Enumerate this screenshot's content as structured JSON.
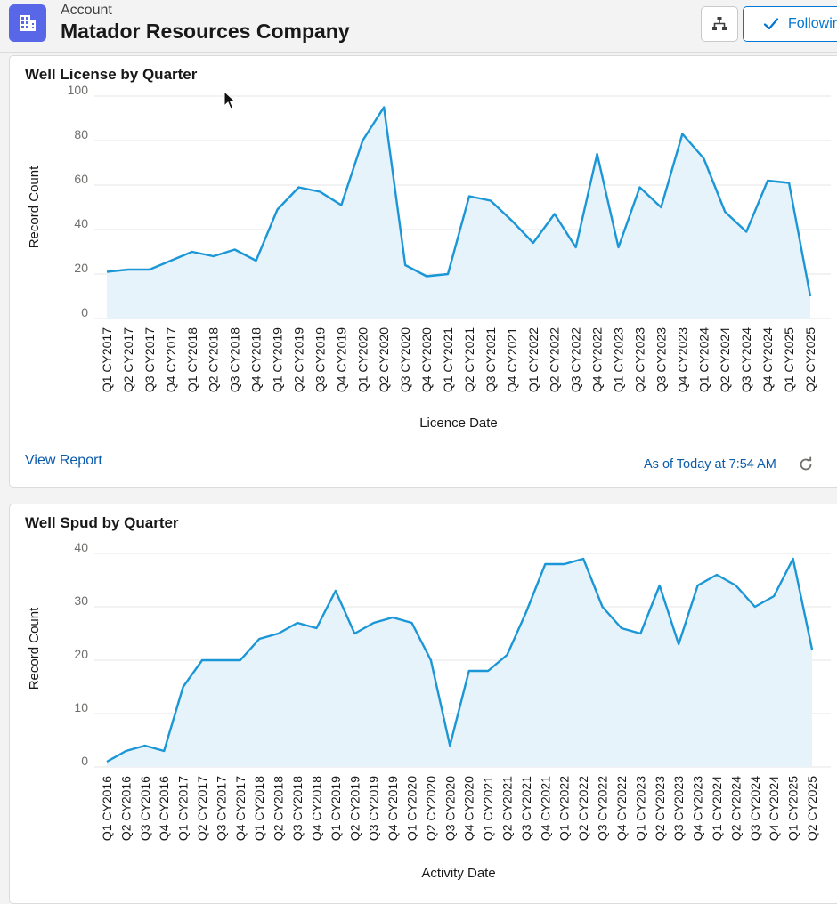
{
  "header": {
    "object_type": "Account",
    "record_name": "Matador Resources Company",
    "follow_label": "Followin",
    "icons": {
      "app": "building-icon",
      "hierarchy": "hierarchy-icon",
      "follow": "check-icon"
    }
  },
  "colors": {
    "accent": "#1b96d6",
    "fill": "#e6f3fb",
    "link": "#0b5cab",
    "app_icon": "#5867e8"
  },
  "cards": [
    {
      "title": "Well License by Quarter",
      "view_report": "View Report",
      "as_of": "As of Today at 7:54 AM",
      "refresh_icon": "refresh-icon"
    },
    {
      "title": "Well Spud by Quarter"
    }
  ],
  "chart_data": [
    {
      "type": "area",
      "title": "Well License by Quarter",
      "xlabel": "Licence Date",
      "ylabel": "Record Count",
      "ylim": [
        0,
        100
      ],
      "yticks": [
        0,
        20,
        40,
        60,
        80,
        100
      ],
      "grid": true,
      "categories": [
        "Q1 CY2017",
        "Q2 CY2017",
        "Q3 CY2017",
        "Q4 CY2017",
        "Q1 CY2018",
        "Q2 CY2018",
        "Q3 CY2018",
        "Q4 CY2018",
        "Q1 CY2019",
        "Q2 CY2019",
        "Q3 CY2019",
        "Q4 CY2019",
        "Q1 CY2020",
        "Q2 CY2020",
        "Q3 CY2020",
        "Q4 CY2020",
        "Q1 CY2021",
        "Q2 CY2021",
        "Q3 CY2021",
        "Q4 CY2021",
        "Q1 CY2022",
        "Q2 CY2022",
        "Q3 CY2022",
        "Q4 CY2022",
        "Q1 CY2023",
        "Q2 CY2023",
        "Q3 CY2023",
        "Q4 CY2023",
        "Q1 CY2024",
        "Q2 CY2024",
        "Q3 CY2024",
        "Q4 CY2024",
        "Q1 CY2025",
        "Q2 CY2025"
      ],
      "values": [
        21,
        22,
        22,
        26,
        30,
        28,
        31,
        26,
        49,
        59,
        57,
        51,
        80,
        95,
        24,
        19,
        20,
        55,
        53,
        44,
        34,
        47,
        32,
        74,
        32,
        59,
        50,
        83,
        72,
        48,
        39,
        62,
        61,
        10
      ]
    },
    {
      "type": "area",
      "title": "Well Spud by Quarter",
      "xlabel": "Activity Date",
      "ylabel": "Record Count",
      "ylim": [
        0,
        40
      ],
      "yticks": [
        0,
        10,
        20,
        30,
        40
      ],
      "grid": true,
      "categories": [
        "Q1 CY2016",
        "Q2 CY2016",
        "Q3 CY2016",
        "Q4 CY2016",
        "Q1 CY2017",
        "Q2 CY2017",
        "Q3 CY2017",
        "Q4 CY2017",
        "Q1 CY2018",
        "Q2 CY2018",
        "Q3 CY2018",
        "Q4 CY2018",
        "Q1 CY2019",
        "Q2 CY2019",
        "Q3 CY2019",
        "Q4 CY2019",
        "Q1 CY2020",
        "Q2 CY2020",
        "Q3 CY2020",
        "Q4 CY2020",
        "Q1 CY2021",
        "Q2 CY2021",
        "Q3 CY2021",
        "Q4 CY2021",
        "Q1 CY2022",
        "Q2 CY2022",
        "Q3 CY2022",
        "Q4 CY2022",
        "Q1 CY2023",
        "Q2 CY2023",
        "Q3 CY2023",
        "Q4 CY2023",
        "Q1 CY2024",
        "Q2 CY2024",
        "Q3 CY2024",
        "Q4 CY2024",
        "Q1 CY2025",
        "Q2 CY2025"
      ],
      "values": [
        1,
        3,
        4,
        3,
        15,
        20,
        20,
        20,
        24,
        25,
        27,
        26,
        33,
        25,
        27,
        28,
        27,
        20,
        4,
        18,
        18,
        21,
        29,
        38,
        38,
        39,
        30,
        26,
        25,
        34,
        23,
        34,
        36,
        34,
        30,
        32,
        39,
        22
      ]
    }
  ]
}
